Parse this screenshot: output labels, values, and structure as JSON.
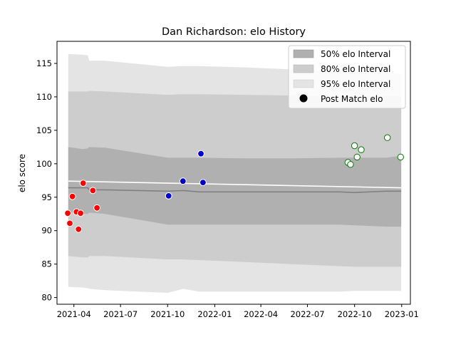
{
  "chart_data": {
    "type": "scatter",
    "title": "Dan Richardson: elo History",
    "xlabel": "",
    "ylabel": "elo score",
    "xlim": [
      "2021-02-27",
      "2023-01-18"
    ],
    "ylim": [
      79,
      118.3
    ],
    "x_ticks": [
      "2021-04",
      "2021-07",
      "2021-10",
      "2022-01",
      "2022-04",
      "2022-07",
      "2022-10",
      "2023-01"
    ],
    "y_ticks": [
      80,
      85,
      90,
      95,
      100,
      105,
      110,
      115
    ],
    "grid": false,
    "legend_position": "top-right",
    "legend": [
      {
        "key": "band50",
        "label": "50% elo Interval"
      },
      {
        "key": "band80",
        "label": "80% elo Interval"
      },
      {
        "key": "band95",
        "label": "95% elo Interval"
      },
      {
        "key": "points",
        "label": "Post Match elo"
      }
    ],
    "colors": {
      "band50": "#b0b0b0",
      "band80": "#cdcdcd",
      "band95": "#e4e4e4",
      "mean_line": "#808080",
      "target_line": "#ffffff",
      "season1": "#ff0000",
      "season2": "#0000cc",
      "season3": "#ffffff",
      "season3_edge": "#007a00"
    },
    "bands": {
      "x": [
        "2021-03-21",
        "2021-04-18",
        "2021-04-28",
        "2021-05-01",
        "2021-06-01",
        "2021-10-01",
        "2021-11-01",
        "2021-12-01",
        "2022-03-01",
        "2022-06-01",
        "2022-09-01",
        "2022-10-01",
        "2022-12-01",
        "2022-12-31"
      ],
      "upper95": [
        116.4,
        116.3,
        116.2,
        115.4,
        115.4,
        114.5,
        114.6,
        114.6,
        114.4,
        114.1,
        113.8,
        113.7,
        113.5,
        113.5
      ],
      "upper80": [
        110.8,
        110.8,
        110.8,
        110.9,
        110.8,
        110.3,
        110.4,
        110.4,
        110.3,
        110.2,
        110.1,
        110.1,
        110.1,
        110.1
      ],
      "upper50": [
        102.5,
        102.2,
        102.3,
        102.5,
        102.4,
        100.9,
        100.9,
        100.9,
        100.8,
        100.8,
        100.9,
        100.9,
        100.9,
        101.2
      ],
      "mean": [
        96.4,
        96.4,
        96.4,
        96.1,
        96.1,
        95.9,
        96.0,
        95.8,
        95.8,
        95.8,
        95.8,
        95.7,
        95.9,
        95.9
      ],
      "lower50": [
        92.8,
        92.5,
        92.5,
        92.7,
        92.5,
        90.9,
        90.9,
        90.9,
        90.9,
        90.9,
        90.9,
        90.8,
        90.6,
        90.6
      ],
      "lower80": [
        86.2,
        86.0,
        86.0,
        86.2,
        86.2,
        85.7,
        85.7,
        85.6,
        85.3,
        85.0,
        84.7,
        84.6,
        84.6,
        84.6
      ],
      "lower95": [
        81.6,
        81.5,
        81.4,
        81.3,
        81.1,
        80.7,
        81.3,
        80.9,
        80.9,
        80.9,
        80.9,
        81.0,
        81.0,
        81.0
      ]
    },
    "target_line": {
      "x": [
        "2021-03-21",
        "2022-12-31"
      ],
      "y": [
        97.4,
        96.4
      ]
    },
    "series": [
      {
        "key": "season1",
        "points": [
          {
            "x": "2021-03-20",
            "y": 92.6
          },
          {
            "x": "2021-03-24",
            "y": 91.1
          },
          {
            "x": "2021-03-29",
            "y": 95.1
          },
          {
            "x": "2021-04-06",
            "y": 92.8
          },
          {
            "x": "2021-04-10",
            "y": 90.2
          },
          {
            "x": "2021-04-14",
            "y": 92.6
          },
          {
            "x": "2021-04-19",
            "y": 97.1
          },
          {
            "x": "2021-05-08",
            "y": 96.0
          },
          {
            "x": "2021-05-16",
            "y": 93.4
          }
        ]
      },
      {
        "key": "season2",
        "points": [
          {
            "x": "2021-10-03",
            "y": 95.2
          },
          {
            "x": "2021-10-31",
            "y": 97.4
          },
          {
            "x": "2021-12-05",
            "y": 101.5
          },
          {
            "x": "2021-12-09",
            "y": 97.2
          }
        ]
      },
      {
        "key": "season3",
        "points": [
          {
            "x": "2022-09-18",
            "y": 100.2
          },
          {
            "x": "2022-09-23",
            "y": 99.9
          },
          {
            "x": "2022-10-01",
            "y": 102.7
          },
          {
            "x": "2022-10-06",
            "y": 101.0
          },
          {
            "x": "2022-10-14",
            "y": 102.1
          },
          {
            "x": "2022-12-04",
            "y": 103.9
          },
          {
            "x": "2022-12-30",
            "y": 101.0
          }
        ]
      }
    ]
  }
}
